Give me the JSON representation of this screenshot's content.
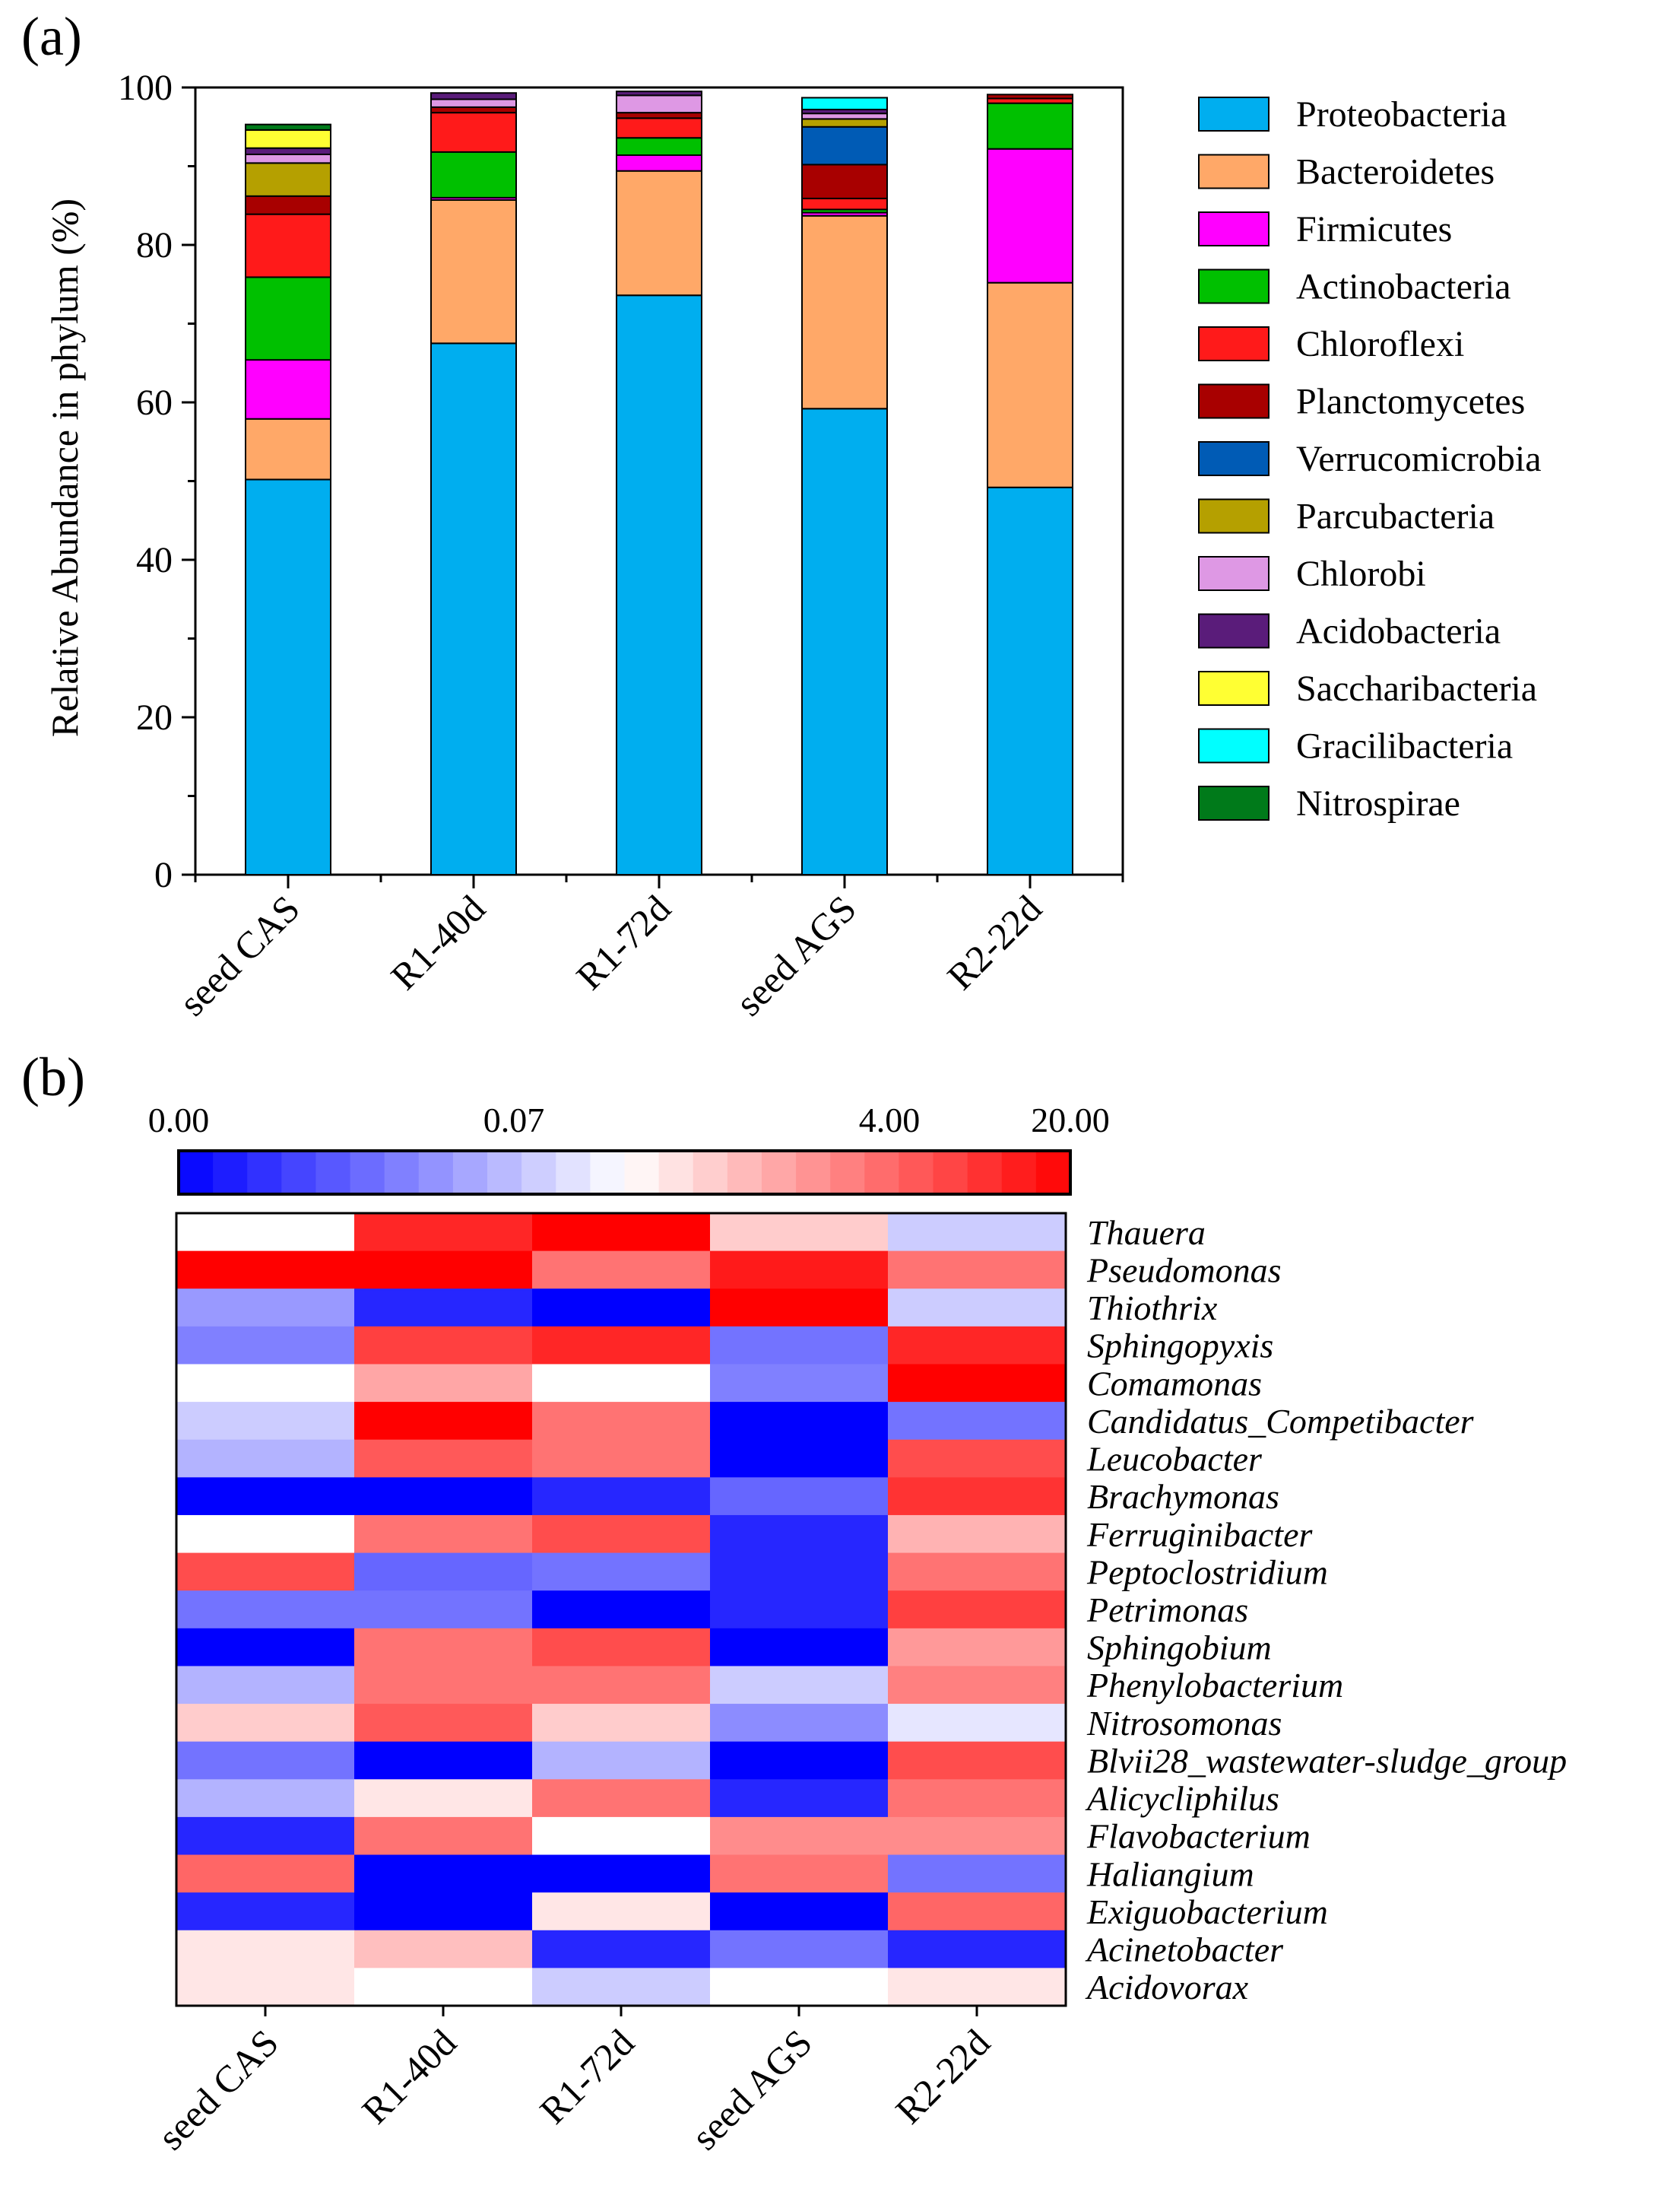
{
  "chart_data": [
    {
      "panel_label": "(a)",
      "type": "bar",
      "stacked": true,
      "ylabel": "Relative Abundance in phylum (%)",
      "xlabel": "",
      "ylim": [
        0,
        100
      ],
      "yticks": [
        "0",
        "20",
        "40",
        "60",
        "80",
        "100"
      ],
      "categories": [
        "seed CAS",
        "R1-40d",
        "R1-72d",
        "seed AGS",
        "R2-22d"
      ],
      "legend_position": "right",
      "series": [
        {
          "name": "Proteobacteria",
          "color": "#00AEEF",
          "values": [
            50.2,
            67.5,
            73.6,
            59.2,
            49.2
          ]
        },
        {
          "name": "Bacteroidetes",
          "color": "#FFA868",
          "values": [
            7.7,
            18.2,
            15.8,
            24.5,
            26.0
          ]
        },
        {
          "name": "Firmicutes",
          "color": "#FF00FF",
          "values": [
            7.5,
            0.3,
            2.0,
            0.4,
            17.0
          ]
        },
        {
          "name": "Actinobacteria",
          "color": "#00C000",
          "values": [
            10.5,
            5.8,
            2.2,
            0.4,
            5.8
          ]
        },
        {
          "name": "Chloroflexi",
          "color": "#FF1A1A",
          "values": [
            8.0,
            5.0,
            2.5,
            1.4,
            0.6
          ]
        },
        {
          "name": "Planctomycetes",
          "color": "#A80000",
          "values": [
            2.3,
            0.7,
            0.7,
            4.3,
            0.5
          ]
        },
        {
          "name": "Verrucomicrobia",
          "color": "#005BB5",
          "values": [
            0.0,
            0.0,
            0.0,
            4.8,
            0.0
          ]
        },
        {
          "name": "Parcubacteria",
          "color": "#B5A000",
          "values": [
            4.2,
            0.0,
            0.0,
            1.0,
            0.0
          ]
        },
        {
          "name": "Chlorobi",
          "color": "#DE98E4",
          "values": [
            1.1,
            1.0,
            2.2,
            0.7,
            0.0
          ]
        },
        {
          "name": "Acidobacteria",
          "color": "#5A1C7A",
          "values": [
            0.8,
            0.8,
            0.5,
            0.5,
            0.0
          ]
        },
        {
          "name": "Saccharibacteria",
          "color": "#FFFF33",
          "values": [
            2.3,
            0.0,
            0.0,
            0.0,
            0.0
          ]
        },
        {
          "name": "Gracilibacteria",
          "color": "#00FFFF",
          "values": [
            0.0,
            0.0,
            0.0,
            1.5,
            0.0
          ]
        },
        {
          "name": "Nitrospirae",
          "color": "#007A1A",
          "values": [
            0.7,
            0.0,
            0.0,
            0.0,
            0.0
          ]
        }
      ]
    },
    {
      "panel_label": "(b)",
      "type": "heatmap",
      "colorbar_labels": [
        "0.00",
        "0.07",
        "4.00",
        "20.00"
      ],
      "colorbar_low": "#0000FF",
      "colorbar_mid": "#FFFFFF",
      "colorbar_high": "#FF0000",
      "columns": [
        "seed CAS",
        "R1-40d",
        "R1-72d",
        "seed AGS",
        "R2-22d"
      ],
      "rows": [
        "Thauera",
        "Pseudomonas",
        "Thiothrix",
        "Sphingopyxis",
        "Comamonas",
        "Candidatus_Competibacter",
        "Leucobacter",
        "Brachymonas",
        "Ferruginibacter",
        "Peptoclostridium",
        "Petrimonas",
        "Sphingobium",
        "Phenylobacterium",
        "Nitrosomonas",
        "Blvii28_wastewater-sludge_group",
        "Alicycliphilus",
        "Flavobacterium",
        "Haliangium",
        "Exiguobacterium",
        "Acinetobacter",
        "Acidovorax"
      ],
      "values": [
        [
          0.0,
          0.85,
          1.0,
          0.2,
          -0.2
        ],
        [
          1.0,
          1.0,
          0.55,
          0.9,
          0.55
        ],
        [
          -0.4,
          -0.85,
          -1.0,
          1.0,
          -0.2
        ],
        [
          -0.5,
          0.75,
          0.85,
          -0.55,
          0.85
        ],
        [
          0.0,
          0.35,
          0.0,
          -0.5,
          1.0
        ],
        [
          -0.2,
          1.0,
          0.55,
          -1.0,
          -0.55
        ],
        [
          -0.3,
          0.65,
          0.55,
          -1.0,
          0.7
        ],
        [
          -1.0,
          -1.0,
          -0.85,
          -0.6,
          0.8
        ],
        [
          0.0,
          0.55,
          0.7,
          -0.85,
          0.3
        ],
        [
          0.7,
          -0.6,
          -0.55,
          -0.85,
          0.55
        ],
        [
          -0.55,
          -0.55,
          -1.0,
          -0.85,
          0.75
        ],
        [
          -1.0,
          0.55,
          0.7,
          -1.0,
          0.4
        ],
        [
          -0.3,
          0.55,
          0.55,
          -0.2,
          0.5
        ],
        [
          0.2,
          0.65,
          0.2,
          -0.45,
          -0.1
        ],
        [
          -0.55,
          -1.0,
          -0.3,
          -1.0,
          0.7
        ],
        [
          -0.3,
          0.1,
          0.55,
          -0.85,
          0.55
        ],
        [
          -0.85,
          0.55,
          0.0,
          0.45,
          0.45
        ],
        [
          0.6,
          -1.0,
          -1.0,
          0.55,
          -0.55
        ],
        [
          -0.85,
          -1.0,
          0.1,
          -1.0,
          0.6
        ],
        [
          0.1,
          0.25,
          -0.85,
          -0.55,
          -0.85
        ],
        [
          0.1,
          0.0,
          -0.2,
          0.0,
          0.1
        ]
      ]
    }
  ]
}
